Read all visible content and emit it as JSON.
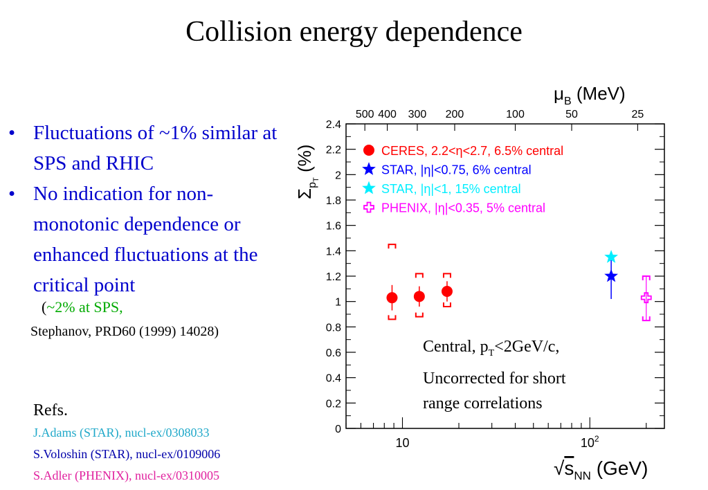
{
  "slide": {
    "title": "Collision energy dependence",
    "bullets": [
      "Fluctuations of  ~1% similar at SPS and RHIC",
      "No indication for non-monotonic dependence or enhanced fluctuations at the critical point"
    ],
    "note_open": "(",
    "note_green": "~2% at SPS,",
    "note_paper": "Stephanov, PRD60 (1999) 14028)",
    "refs_title": "Refs.",
    "refs": [
      {
        "text": "J.Adams (STAR), nucl-ex/0308033",
        "color": "#1fa8c9"
      },
      {
        "text": "S.Voloshin (STAR), nucl-ex/0109006",
        "color": "#0000aa"
      },
      {
        "text": "S.Adler (PHENIX), nucl-ex/0310005",
        "color": "#e0209e"
      }
    ],
    "chart_note": {
      "line1_pre": "Central, p",
      "line1_sub": "T",
      "line1_post": "<2GeV/c,",
      "line2": "Uncorrected for short",
      "line3": "range correlations"
    }
  },
  "chart_data": {
    "type": "scatter",
    "x_scale": "log",
    "xlim": [
      5,
      250
    ],
    "ylim": [
      0,
      2.4
    ],
    "xticks": [
      {
        "value": 10,
        "label": "10"
      },
      {
        "value": 100,
        "label": "10^2"
      }
    ],
    "yticks": [
      0,
      0.2,
      0.4,
      0.6,
      0.8,
      1,
      1.2,
      1.4,
      1.6,
      1.8,
      2,
      2.2,
      2.4
    ],
    "ytick_labels": [
      "0",
      "0.2",
      "0.4",
      "0.6",
      "0.8",
      "1",
      "1.2",
      "1.4",
      "1.6",
      "1.8",
      "2",
      "2.2",
      "2.4"
    ],
    "xlabel_pre": "√",
    "xlabel_main": "s",
    "xlabel_sub": "NN",
    "xlabel_unit": " (GeV)",
    "ylabel_main": "Σ",
    "ylabel_sub": "p",
    "ylabel_subsub": "T",
    "ylabel_unit": " (%)",
    "top_axis": {
      "label_main": "μ",
      "label_sub": "B",
      "label_unit": " (MeV)",
      "ticks": [
        {
          "sqrt_s": 6.3,
          "label": "500"
        },
        {
          "sqrt_s": 8.3,
          "label": "400"
        },
        {
          "sqrt_s": 12.0,
          "label": "300"
        },
        {
          "sqrt_s": 19.0,
          "label": "200"
        },
        {
          "sqrt_s": 40.0,
          "label": "100"
        },
        {
          "sqrt_s": 80.0,
          "label": "50"
        },
        {
          "sqrt_s": 180.0,
          "label": "25"
        }
      ]
    },
    "legend_position": "top-left",
    "series": [
      {
        "name": "CERES, 2.2<η<2.7, 6.5% central",
        "color": "#ff0000",
        "marker": "circle",
        "points": [
          {
            "x": 8.8,
            "y": 1.03,
            "stat": 0.1,
            "sys_lo": 0.86,
            "sys_hi": 1.45
          },
          {
            "x": 12.3,
            "y": 1.04,
            "stat": 0.08,
            "sys_lo": 0.88,
            "sys_hi": 1.22
          },
          {
            "x": 17.3,
            "y": 1.08,
            "stat": 0.08,
            "sys_lo": 0.96,
            "sys_hi": 1.22
          }
        ]
      },
      {
        "name": "STAR, |η|<0.75, 6% central",
        "color": "#0000ff",
        "marker": "star",
        "points": [
          {
            "x": 130,
            "y": 1.2,
            "stat": 0.18
          }
        ]
      },
      {
        "name": "STAR, |η|<1, 15% central",
        "color": "#00eeff",
        "marker": "star",
        "points": [
          {
            "x": 130,
            "y": 1.35,
            "stat": 0
          }
        ]
      },
      {
        "name": "PHENIX, |η|<0.35, 5% central",
        "color": "#ff00ff",
        "marker": "open-cross",
        "points": [
          {
            "x": 200,
            "y": 1.03,
            "stat": 0,
            "sys_lo": 0.85,
            "sys_hi": 1.2
          }
        ]
      }
    ]
  }
}
